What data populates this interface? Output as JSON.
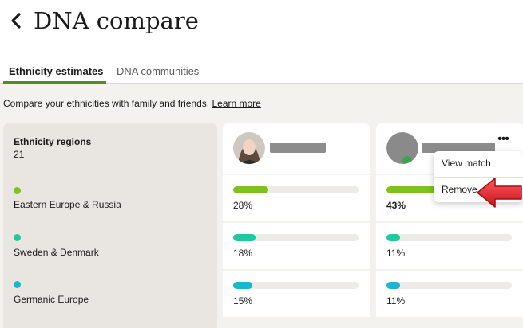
{
  "header": {
    "title": "DNA compare",
    "back_icon": "chevron-left-icon"
  },
  "tabs": [
    {
      "label": "Ethnicity estimates",
      "active": true
    },
    {
      "label": "DNA communities",
      "active": false
    }
  ],
  "intro": {
    "text": "Compare your ethnicities with family and friends.",
    "link": "Learn more"
  },
  "regions": {
    "header_label": "Ethnicity regions",
    "count": "21",
    "items": [
      {
        "name": "Eastern Europe & Russia",
        "color": "#7dc21e"
      },
      {
        "name": "Sweden & Denmark",
        "color": "#1ec9a0"
      },
      {
        "name": "Germanic Europe",
        "color": "#19b6cf"
      }
    ]
  },
  "people": [
    {
      "avatar": "profile-photo",
      "values": [
        {
          "percent": "28%",
          "fraction": 0.28
        },
        {
          "percent": "18%",
          "fraction": 0.18
        },
        {
          "percent": "15%",
          "fraction": 0.15
        }
      ]
    },
    {
      "avatar": "placeholder-avatar",
      "values": [
        {
          "percent": "43%",
          "fraction": 0.43
        },
        {
          "percent": "11%",
          "fraction": 0.11
        },
        {
          "percent": "11%",
          "fraction": 0.11
        }
      ]
    }
  ],
  "menu": {
    "more_icon": "more-horizontal-icon",
    "items": [
      "View match",
      "Remove"
    ]
  },
  "colors": {
    "accent": "#5a8a1f",
    "arrow": "#e41c23"
  }
}
